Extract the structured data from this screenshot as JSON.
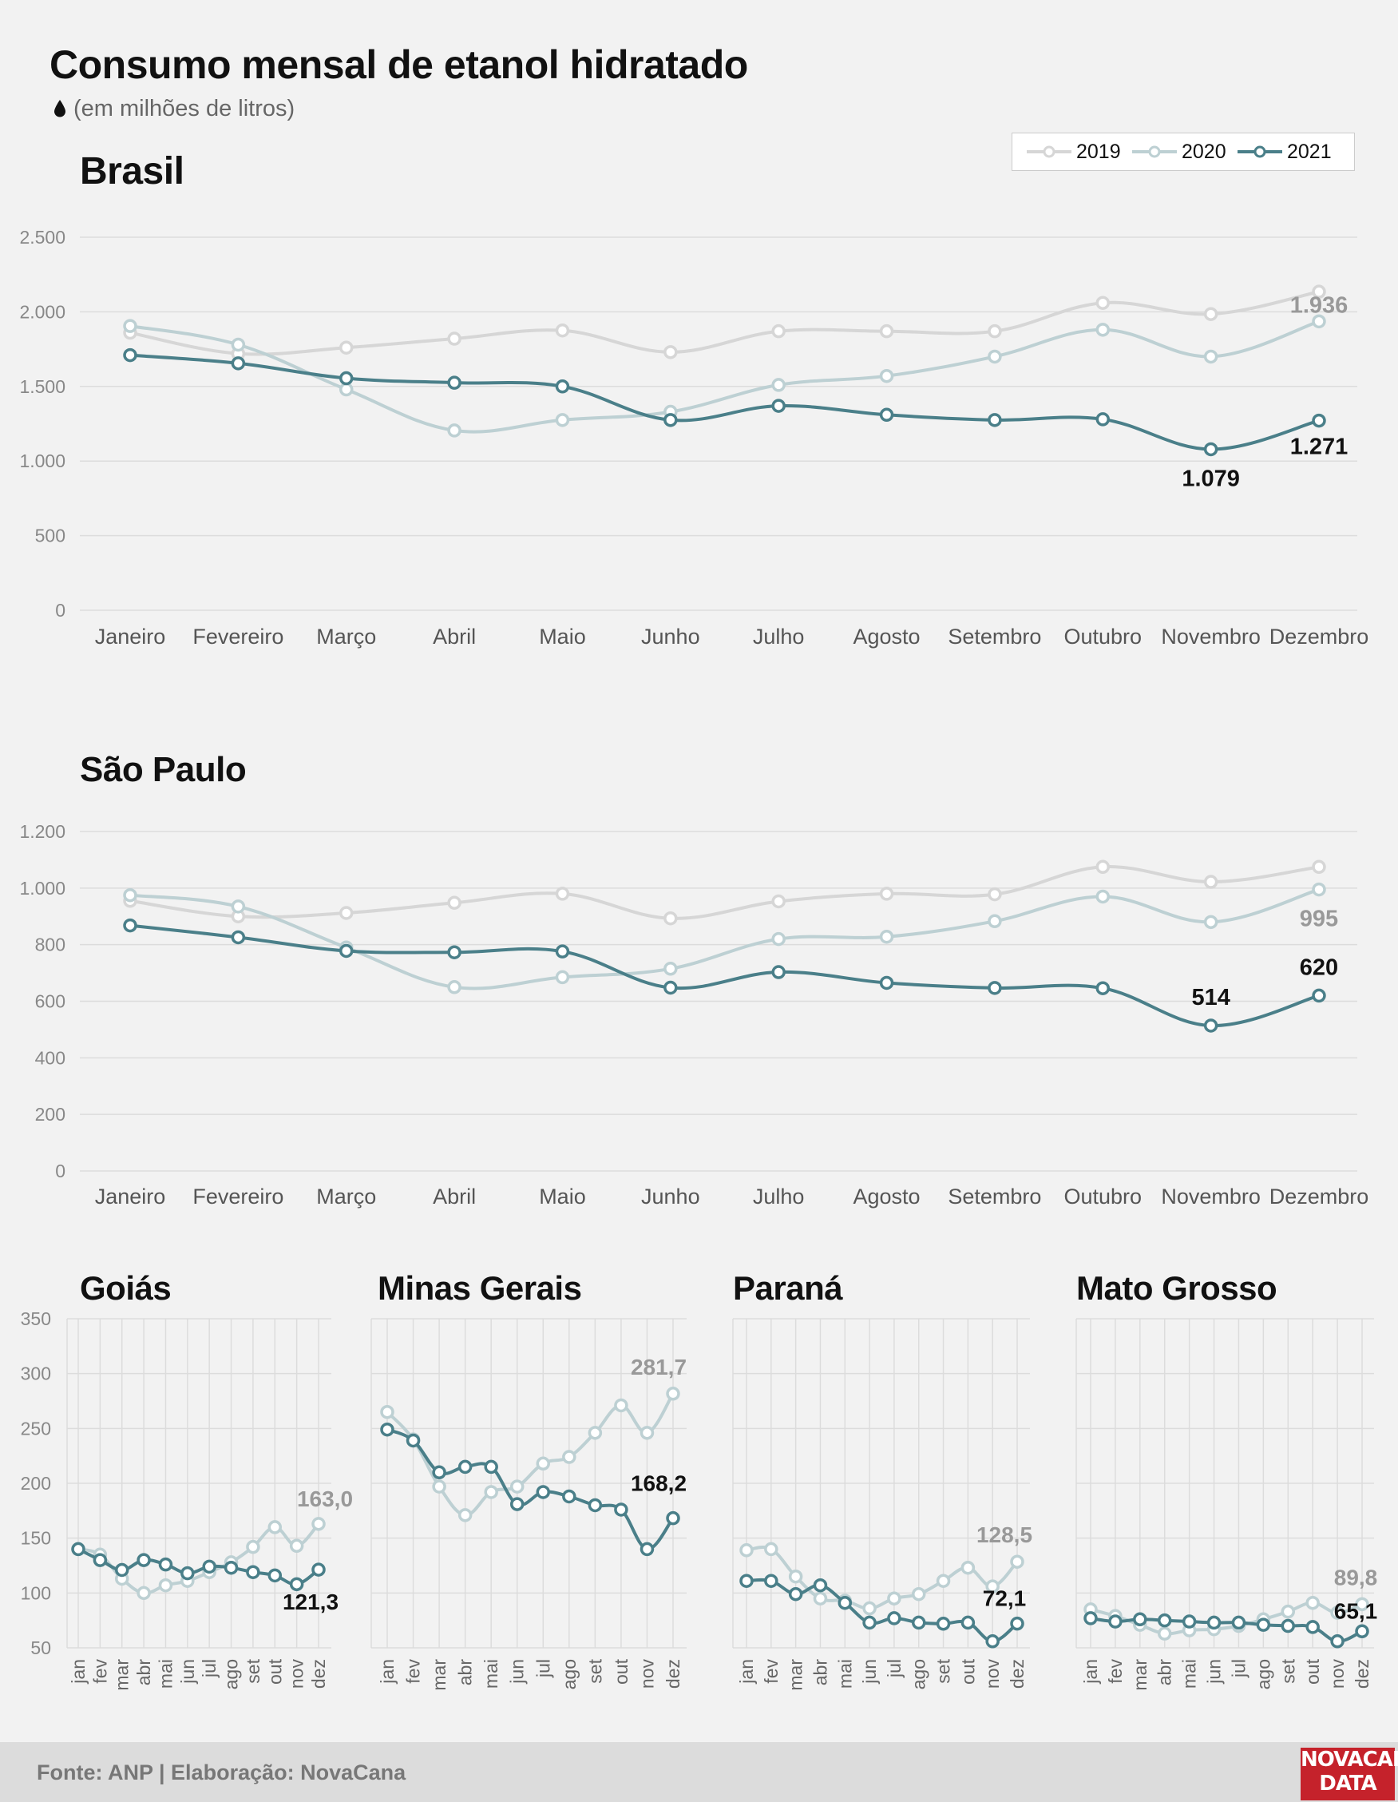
{
  "header": {
    "title": "Consumo mensal de etanol hidratado",
    "subtitle": "(em milhões de litros)"
  },
  "legend": [
    {
      "label": "2019",
      "color": "#d6d6d6"
    },
    {
      "label": "2020",
      "color": "#bdd0d3"
    },
    {
      "label": "2021",
      "color": "#4a7f89"
    }
  ],
  "footer": {
    "source": "Fonte: ANP | Elaboração: NovaCana",
    "logo_line1": "NOVACANA",
    "logo_line2": "DATA"
  },
  "chart_data": [
    {
      "type": "line",
      "title": "Brasil",
      "categories": [
        "Janeiro",
        "Fevereiro",
        "Março",
        "Abril",
        "Maio",
        "Junho",
        "Julho",
        "Agosto",
        "Setembro",
        "Outubro",
        "Novembro",
        "Dezembro"
      ],
      "ylim": [
        0,
        2500
      ],
      "yticks": [
        0,
        500,
        1000,
        1500,
        2000,
        2500
      ],
      "ytick_labels": [
        "0",
        "500",
        "1.000",
        "1.500",
        "2.000",
        "2.500"
      ],
      "grid": true,
      "series": [
        {
          "name": "2019",
          "values": [
            1860,
            1720,
            1760,
            1820,
            1875,
            1730,
            1870,
            1870,
            1870,
            2060,
            1985,
            2135
          ]
        },
        {
          "name": "2020",
          "values": [
            1905,
            1780,
            1480,
            1205,
            1275,
            1330,
            1510,
            1570,
            1700,
            1880,
            1700,
            1936
          ]
        },
        {
          "name": "2021",
          "values": [
            1710,
            1655,
            1555,
            1525,
            1500,
            1275,
            1370,
            1310,
            1275,
            1280,
            1079,
            1271
          ]
        }
      ],
      "annotations": [
        {
          "series": "2020",
          "index": 11,
          "text": "1.936"
        },
        {
          "series": "2021",
          "index": 10,
          "text": "1.079"
        },
        {
          "series": "2021",
          "index": 11,
          "text": "1.271"
        }
      ]
    },
    {
      "type": "line",
      "title": "São Paulo",
      "categories": [
        "Janeiro",
        "Fevereiro",
        "Março",
        "Abril",
        "Maio",
        "Junho",
        "Julho",
        "Agosto",
        "Setembro",
        "Outubro",
        "Novembro",
        "Dezembro"
      ],
      "ylim": [
        0,
        1200
      ],
      "yticks": [
        0,
        200,
        400,
        600,
        800,
        1000,
        1200
      ],
      "ytick_labels": [
        "0",
        "200",
        "400",
        "600",
        "800",
        "1.000",
        "1.200"
      ],
      "grid": true,
      "series": [
        {
          "name": "2019",
          "values": [
            955,
            900,
            912,
            948,
            980,
            893,
            953,
            980,
            978,
            1075,
            1022,
            1075
          ]
        },
        {
          "name": "2020",
          "values": [
            975,
            935,
            790,
            650,
            685,
            715,
            820,
            828,
            883,
            970,
            880,
            995
          ]
        },
        {
          "name": "2021",
          "values": [
            868,
            826,
            778,
            773,
            776,
            648,
            703,
            665,
            647,
            646,
            514,
            620
          ]
        }
      ],
      "annotations": [
        {
          "series": "2020",
          "index": 11,
          "text": "995"
        },
        {
          "series": "2021",
          "index": 10,
          "text": "514"
        },
        {
          "series": "2021",
          "index": 11,
          "text": "620"
        }
      ]
    },
    {
      "type": "line",
      "title": "Goiás",
      "categories": [
        "jan",
        "fev",
        "mar",
        "abr",
        "mai",
        "jun",
        "jul",
        "ago",
        "set",
        "out",
        "nov",
        "dez"
      ],
      "ylim": [
        50,
        350
      ],
      "yticks": [
        50,
        100,
        150,
        200,
        250,
        300,
        350
      ],
      "ytick_labels": [
        "50",
        "100",
        "150",
        "200",
        "250",
        "300",
        "350"
      ],
      "grid": true,
      "series": [
        {
          "name": "2020",
          "values": [
            140,
            135,
            113,
            100,
            107,
            111,
            119,
            128,
            142,
            160,
            143,
            163.0
          ]
        },
        {
          "name": "2021",
          "values": [
            140,
            130,
            121,
            130,
            126,
            118,
            124,
            123,
            119,
            116,
            108,
            121.3
          ]
        }
      ],
      "annotations": [
        {
          "series": "2020",
          "index": 11,
          "text": "163,0"
        },
        {
          "series": "2021",
          "index": 11,
          "text": "121,3"
        }
      ]
    },
    {
      "type": "line",
      "title": "Minas Gerais",
      "categories": [
        "jan",
        "fev",
        "mar",
        "abr",
        "mai",
        "jun",
        "jul",
        "ago",
        "set",
        "out",
        "nov",
        "dez"
      ],
      "ylim": [
        50,
        350
      ],
      "grid": true,
      "series": [
        {
          "name": "2020",
          "values": [
            265,
            240,
            197,
            171,
            192,
            197,
            218,
            224,
            246,
            271,
            246,
            281.7
          ]
        },
        {
          "name": "2021",
          "values": [
            249,
            239,
            210,
            215,
            215,
            181,
            192,
            188,
            180,
            176,
            140,
            168.2
          ]
        }
      ],
      "annotations": [
        {
          "series": "2020",
          "index": 11,
          "text": "281,7"
        },
        {
          "series": "2021",
          "index": 11,
          "text": "168,2"
        }
      ]
    },
    {
      "type": "line",
      "title": "Paraná",
      "categories": [
        "jan",
        "fev",
        "mar",
        "abr",
        "mai",
        "jun",
        "jul",
        "ago",
        "set",
        "out",
        "nov",
        "dez"
      ],
      "ylim": [
        50,
        350
      ],
      "grid": true,
      "series": [
        {
          "name": "2020",
          "values": [
            139,
            140,
            115,
            95,
            93,
            86,
            95,
            99,
            111,
            123,
            106,
            128.5
          ]
        },
        {
          "name": "2021",
          "values": [
            111,
            111,
            99,
            107,
            91,
            73,
            77,
            73,
            72,
            73,
            56,
            72.1
          ]
        }
      ],
      "annotations": [
        {
          "series": "2020",
          "index": 11,
          "text": "128,5"
        },
        {
          "series": "2021",
          "index": 11,
          "text": "72,1"
        }
      ]
    },
    {
      "type": "line",
      "title": "Mato Grosso",
      "categories": [
        "jan",
        "fev",
        "mar",
        "abr",
        "mai",
        "jun",
        "jul",
        "ago",
        "set",
        "out",
        "nov",
        "dez"
      ],
      "ylim": [
        50,
        350
      ],
      "grid": true,
      "series": [
        {
          "name": "2020",
          "values": [
            85,
            79,
            71,
            63,
            66,
            67,
            70,
            76,
            83,
            91,
            82,
            89.8
          ]
        },
        {
          "name": "2021",
          "values": [
            77,
            74,
            76,
            75,
            74,
            73,
            73,
            71,
            70,
            69,
            56,
            65.1
          ]
        }
      ],
      "annotations": [
        {
          "series": "2020",
          "index": 11,
          "text": "89,8"
        },
        {
          "series": "2021",
          "index": 11,
          "text": "65,1"
        }
      ]
    }
  ]
}
